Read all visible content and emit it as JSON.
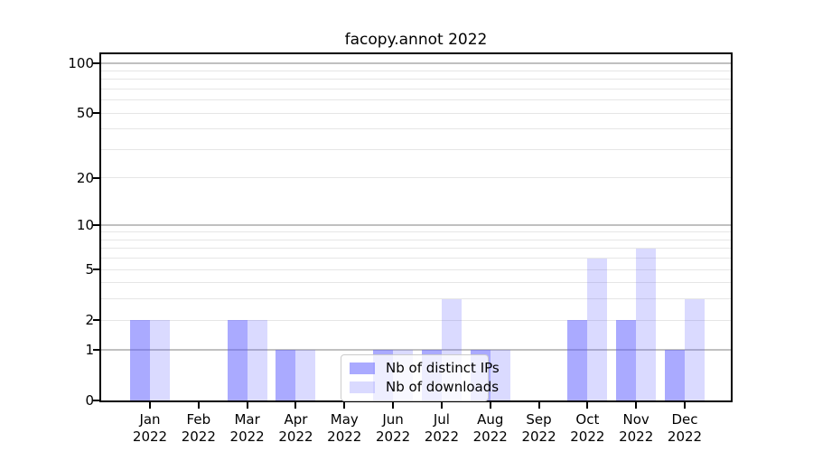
{
  "figure": {
    "title": "facopy.annot 2022"
  },
  "chart_data": {
    "type": "bar",
    "title": "facopy.annot 2022",
    "categories": [
      {
        "month": "Jan",
        "year": "2022"
      },
      {
        "month": "Feb",
        "year": "2022"
      },
      {
        "month": "Mar",
        "year": "2022"
      },
      {
        "month": "Apr",
        "year": "2022"
      },
      {
        "month": "May",
        "year": "2022"
      },
      {
        "month": "Jun",
        "year": "2022"
      },
      {
        "month": "Jul",
        "year": "2022"
      },
      {
        "month": "Aug",
        "year": "2022"
      },
      {
        "month": "Sep",
        "year": "2022"
      },
      {
        "month": "Oct",
        "year": "2022"
      },
      {
        "month": "Nov",
        "year": "2022"
      },
      {
        "month": "Dec",
        "year": "2022"
      }
    ],
    "series": [
      {
        "name": "Nb of distinct IPs",
        "values": [
          2,
          0,
          2,
          1,
          0,
          1,
          1,
          1,
          0,
          2,
          2,
          1
        ],
        "color": "rgba(85, 85, 255, 0.50)",
        "color_hex_on_white": "#aaaaff"
      },
      {
        "name": "Nb of downloads",
        "values": [
          2,
          0,
          2,
          1,
          0,
          1,
          3,
          1,
          0,
          6,
          7,
          3
        ],
        "color": "rgba(85, 85, 255, 0.22)",
        "color_hex_on_white": "#d9d9ff"
      }
    ],
    "xlabel": "",
    "ylabel": "",
    "yscale": "log1p",
    "ylim": [
      0,
      113
    ],
    "yticks": [
      0,
      1,
      2,
      5,
      10,
      20,
      50,
      100
    ],
    "major_gridlines": [
      1,
      10,
      100
    ],
    "minor_gridlines": [
      2,
      3,
      4,
      5,
      6,
      7,
      8,
      9,
      20,
      30,
      40,
      50,
      60,
      70,
      80,
      90
    ],
    "grid": true,
    "legend_position": "lower center"
  }
}
